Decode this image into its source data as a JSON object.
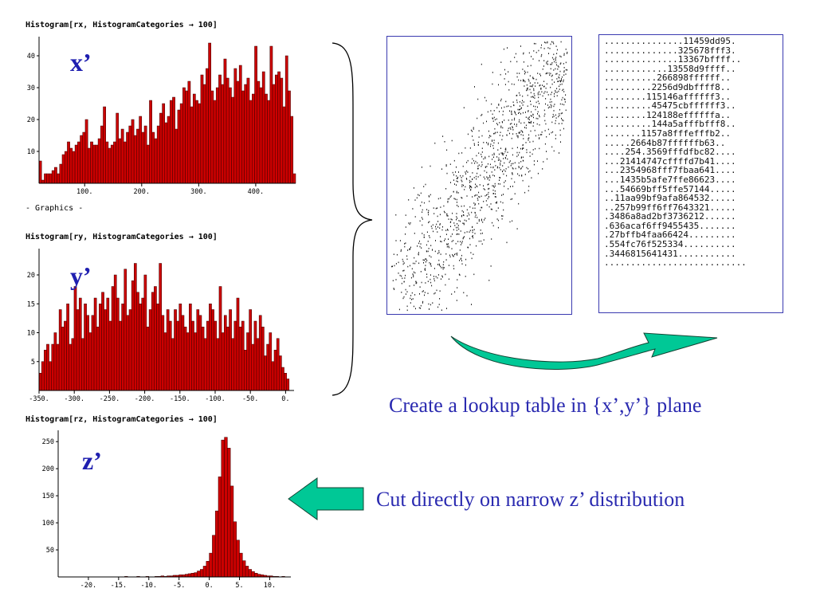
{
  "histograms": {
    "x": {
      "command": "Histogram[rx, HistogramCategories → 100]",
      "var_label": "x’",
      "graphics_label": "- Graphics -"
    },
    "y": {
      "command": "Histogram[ry, HistogramCategories → 100]",
      "var_label": "y’"
    },
    "z": {
      "command": "Histogram[rz, HistogramCategories → 100]",
      "var_label": "z’"
    }
  },
  "lookup_table": {
    "rows": [
      "...............11459dd95.",
      "..............325678fff3.",
      "..............13367bffff..",
      "............13558d9ffff..",
      "..........266898ffffff..",
      ".........2256d9dbffff8..",
      "........115146affffff3..",
      ".........45475cbffffff3..",
      "........124188effffffa..",
      ".........144a5afffbfff8..",
      ".......1157a8fffefffb2..",
      ".....2664b87ffffffb63..",
      "....254.3569fffdfbc82....",
      "...21414747cffffd7b41....",
      "...2354968fff7fbaa641....",
      "...1435b5afe7ffe86623....",
      "...54669bff5ffe57144.....",
      "..11aa99bf9afa864532.....",
      "..257b99ff6ff7643321.....",
      ".3486a8ad2bf3736212......",
      ".636acaf6ff9455435.......",
      ".27bffb4faa66424.........",
      ".554fc76f525334..........",
      ".3446815641431...........",
      "..........................."
    ]
  },
  "captions": {
    "lookup": "Create a lookup table in {x’,y’} plane",
    "cut": "Cut directly on narrow z’ distribution"
  },
  "colors": {
    "bar_fill": "#cc0000",
    "bar_edge": "#3a0000",
    "caption": "#2a2ab0",
    "var_label": "#1f1fb0",
    "arrow": "#00c896",
    "frame": "#3a3ab0"
  },
  "chart_data": [
    {
      "type": "bar",
      "title": "Histogram[rx, HistogramCategories → 100]",
      "xlim": [
        20,
        470
      ],
      "ylim": [
        0,
        45
      ],
      "xticks": [
        100,
        200,
        300,
        400
      ],
      "xtick_labels": [
        "100.",
        "200.",
        "300.",
        "400."
      ],
      "yticks": [
        10,
        20,
        30,
        40
      ],
      "bin_width": 4.5,
      "values": [
        7,
        1,
        3,
        3,
        3,
        4,
        5,
        3,
        6,
        9,
        10,
        13,
        11,
        10,
        12,
        13,
        15,
        16,
        20,
        11,
        13,
        12,
        12,
        14,
        18,
        24,
        13,
        11,
        12,
        13,
        22,
        14,
        17,
        13,
        16,
        18,
        20,
        15,
        17,
        21,
        16,
        18,
        12,
        26,
        16,
        14,
        18,
        22,
        25,
        19,
        21,
        26,
        27,
        17,
        23,
        25,
        30,
        29,
        32,
        24,
        28,
        26,
        25,
        34,
        31,
        36,
        44,
        29,
        26,
        30,
        34,
        31,
        39,
        33,
        30,
        27,
        36,
        32,
        37,
        29,
        31,
        33,
        26,
        28,
        43,
        32,
        30,
        35,
        28,
        26,
        43,
        31,
        34,
        35,
        33,
        24,
        40,
        29,
        21,
        3
      ]
    },
    {
      "type": "bar",
      "title": "Histogram[ry, HistogramCategories → 100]",
      "xlim": [
        -350,
        12
      ],
      "ylim": [
        0,
        24
      ],
      "xticks": [
        -350,
        -300,
        -250,
        -200,
        -150,
        -100,
        -50,
        0
      ],
      "xtick_labels": [
        "-350.",
        "-300.",
        "-250.",
        "-200.",
        "-150.",
        "-100.",
        "-50.",
        "0."
      ],
      "yticks": [
        5,
        10,
        15,
        20
      ],
      "bin_width": 3.55,
      "values": [
        3,
        5,
        7,
        8,
        5,
        8,
        10,
        8,
        14,
        11,
        12,
        15,
        8,
        9,
        18,
        14,
        16,
        9,
        15,
        13,
        10,
        13,
        16,
        11,
        15,
        17,
        14,
        16,
        12,
        18,
        20,
        16,
        12,
        15,
        21,
        13,
        14,
        19,
        22,
        17,
        15,
        16,
        20,
        11,
        14,
        17,
        18,
        15,
        22,
        13,
        10,
        14,
        12,
        9,
        14,
        12,
        15,
        13,
        11,
        10,
        15,
        12,
        10,
        14,
        13,
        11,
        9,
        12,
        15,
        14,
        12,
        9,
        18,
        10,
        13,
        11,
        14,
        9,
        12,
        16,
        11,
        12,
        7,
        10,
        14,
        8,
        12,
        9,
        13,
        11,
        6,
        8,
        10,
        5,
        7,
        9,
        6,
        4,
        3,
        2
      ]
    },
    {
      "type": "bar",
      "title": "Histogram[rz, HistogramCategories → 100]",
      "xlim": [
        -25,
        13.5
      ],
      "ylim": [
        0,
        265
      ],
      "xticks": [
        -20,
        -15,
        -10,
        -5,
        0,
        5,
        10
      ],
      "xtick_labels": [
        "-20.",
        "-15.",
        "-10.",
        "-5.",
        "0.",
        "5.",
        "10."
      ],
      "yticks": [
        50,
        100,
        150,
        200,
        250
      ],
      "x_start": -14,
      "bin_width": 0.5,
      "values": [
        1,
        0,
        0,
        0,
        1,
        0,
        0,
        1,
        0,
        0,
        1,
        1,
        2,
        1,
        2,
        2,
        3,
        3,
        4,
        4,
        5,
        6,
        7,
        8,
        11,
        14,
        20,
        29,
        44,
        77,
        122,
        185,
        253,
        258,
        238,
        168,
        102,
        68,
        44,
        30,
        20,
        14,
        10,
        7,
        5,
        4,
        3,
        2,
        2,
        1,
        1,
        0,
        1,
        0
      ]
    },
    {
      "type": "scatter",
      "xlim": [
        0,
        1
      ],
      "ylim": [
        0,
        1
      ],
      "point_count": 1400,
      "correlation": "positive",
      "seed": 12345
    }
  ]
}
